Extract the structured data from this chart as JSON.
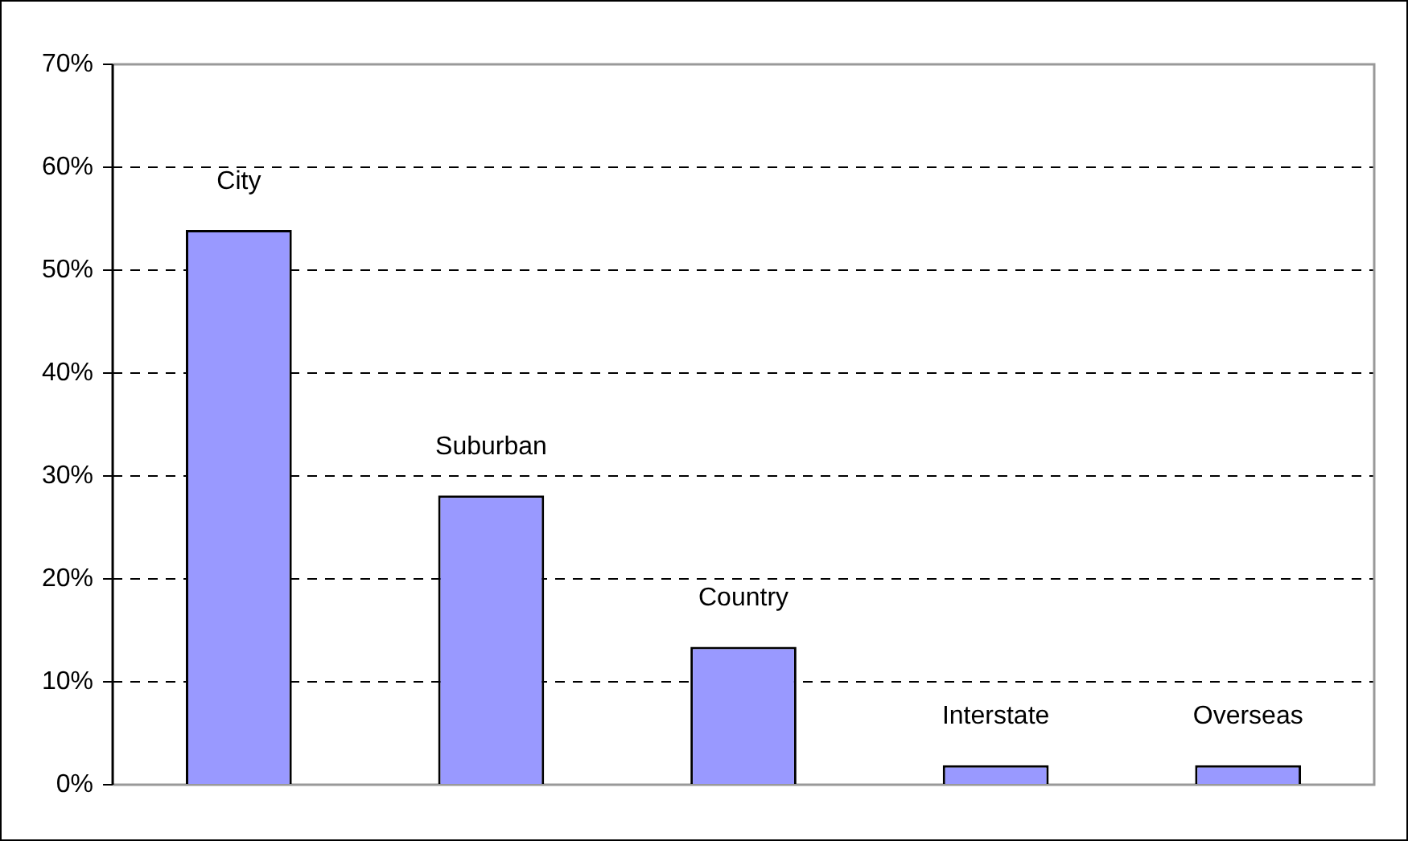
{
  "chart_data": {
    "type": "bar",
    "categories": [
      "City",
      "Suburban",
      "Country",
      "Interstate",
      "Overseas"
    ],
    "values": [
      53.9,
      28.1,
      13.4,
      1.9,
      1.9
    ],
    "color": "#9999ff",
    "ylim": [
      0,
      70
    ],
    "yticks": [
      {
        "value": 0,
        "label": "0%"
      },
      {
        "value": 10,
        "label": "10%"
      },
      {
        "value": 20,
        "label": "20%"
      },
      {
        "value": 30,
        "label": "30%"
      },
      {
        "value": 40,
        "label": "40%"
      },
      {
        "value": 50,
        "label": "50%"
      },
      {
        "value": 60,
        "label": "60%"
      },
      {
        "value": 70,
        "label": "70%"
      }
    ],
    "grid": "y",
    "legend": false
  }
}
